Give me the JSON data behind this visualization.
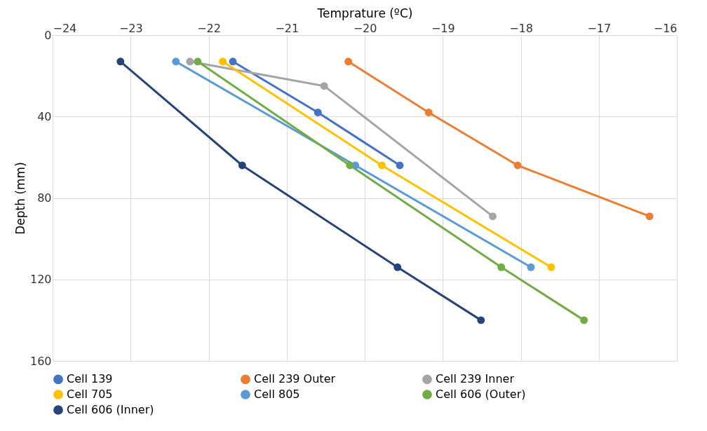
{
  "chart_data": {
    "type": "line",
    "xlabel": "Temprature (ºC)",
    "ylabel": "Depth (mm)",
    "xlim": [
      -24,
      -16
    ],
    "xticks": [
      -24,
      -23,
      -22,
      -21,
      -20,
      -19,
      -18,
      -17,
      -16
    ],
    "ylim": [
      160,
      0
    ],
    "yticks": [
      0,
      40,
      80,
      120,
      160
    ],
    "grid": true,
    "legend": "bottom",
    "marker": "circle",
    "line_style": "solid",
    "series": [
      {
        "name": "Cell 139",
        "color": "#4472c4",
        "x": [
          -21.69,
          -20.6,
          -19.55
        ],
        "values": [
          13,
          38,
          64
        ]
      },
      {
        "name": "Cell 239 Outer",
        "color": "#ed7d31",
        "x": [
          -20.21,
          -19.18,
          -18.04,
          -16.35
        ],
        "values": [
          13,
          38,
          64,
          89
        ]
      },
      {
        "name": "Cell 239 Inner",
        "color": "#a5a5a5",
        "x": [
          -22.24,
          -20.52,
          -18.36
        ],
        "values": [
          13,
          25,
          89
        ]
      },
      {
        "name": "Cell 705",
        "color": "#ffc000",
        "x": [
          -21.82,
          -19.78,
          -17.61
        ],
        "values": [
          13,
          64,
          114
        ]
      },
      {
        "name": "Cell 805",
        "color": "#5b9bd5",
        "x": [
          -22.42,
          -20.12,
          -17.87
        ],
        "values": [
          13,
          64,
          114
        ]
      },
      {
        "name": "Cell 606 (Outer)",
        "color": "#70ad47",
        "x": [
          -22.14,
          -20.19,
          -18.25,
          -17.19
        ],
        "values": [
          13,
          64,
          114,
          140
        ]
      },
      {
        "name": "Cell 606 (Inner)",
        "color": "#264478",
        "x": [
          -23.13,
          -21.57,
          -19.58,
          -18.51
        ],
        "values": [
          13,
          64,
          114,
          140
        ]
      }
    ]
  }
}
